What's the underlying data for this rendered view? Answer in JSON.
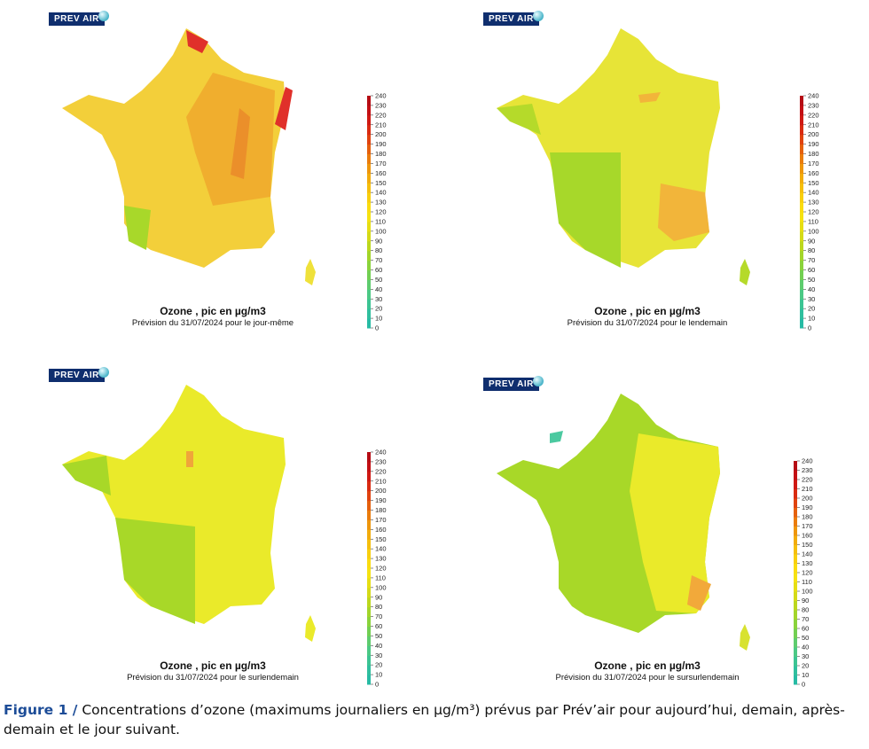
{
  "logo_text": "PREV AIR",
  "map_title": "Ozone , pic en µg/m3",
  "scale_ticks": [
    0,
    10,
    20,
    30,
    40,
    50,
    60,
    70,
    80,
    90,
    100,
    110,
    120,
    130,
    140,
    150,
    160,
    170,
    180,
    190,
    200,
    210,
    220,
    230,
    240
  ],
  "scale_colors": [
    "#20b8a8",
    "#27bba4",
    "#30bf9e",
    "#3cc493",
    "#4cc985",
    "#5ecc6e",
    "#72cf52",
    "#8ad33b",
    "#a3d52a",
    "#bcd71e",
    "#d4da18",
    "#e6de14",
    "#f5e212",
    "#fadc10",
    "#f8cf0e",
    "#f5bf0d",
    "#f2ac0c",
    "#ee960c",
    "#ea7c0c",
    "#e5600d",
    "#e0430f",
    "#d92b11",
    "#cf1913",
    "#c30f14",
    "#b50c14"
  ],
  "panels": [
    {
      "subtitle": "Prévision du 31/07/2024 pour le jour-même",
      "base_color": "#f3cf3a"
    },
    {
      "subtitle": "Prévision du 31/07/2024 pour le lendemain",
      "base_color": "#e7e437"
    },
    {
      "subtitle": "Prévision du 31/07/2024 pour le surlendemain",
      "base_color": "#eaea2a"
    },
    {
      "subtitle": "Prévision du 31/07/2024 pour le sursurlendemain",
      "base_color": "#dfe530"
    }
  ],
  "caption": {
    "label": "Figure 1 /",
    "text": " Concentrations d’ozone (maximums journaliers en µg/m³) prévus par Prév’air pour aujourd’hui, demain, après-demain et le jour suivant."
  }
}
